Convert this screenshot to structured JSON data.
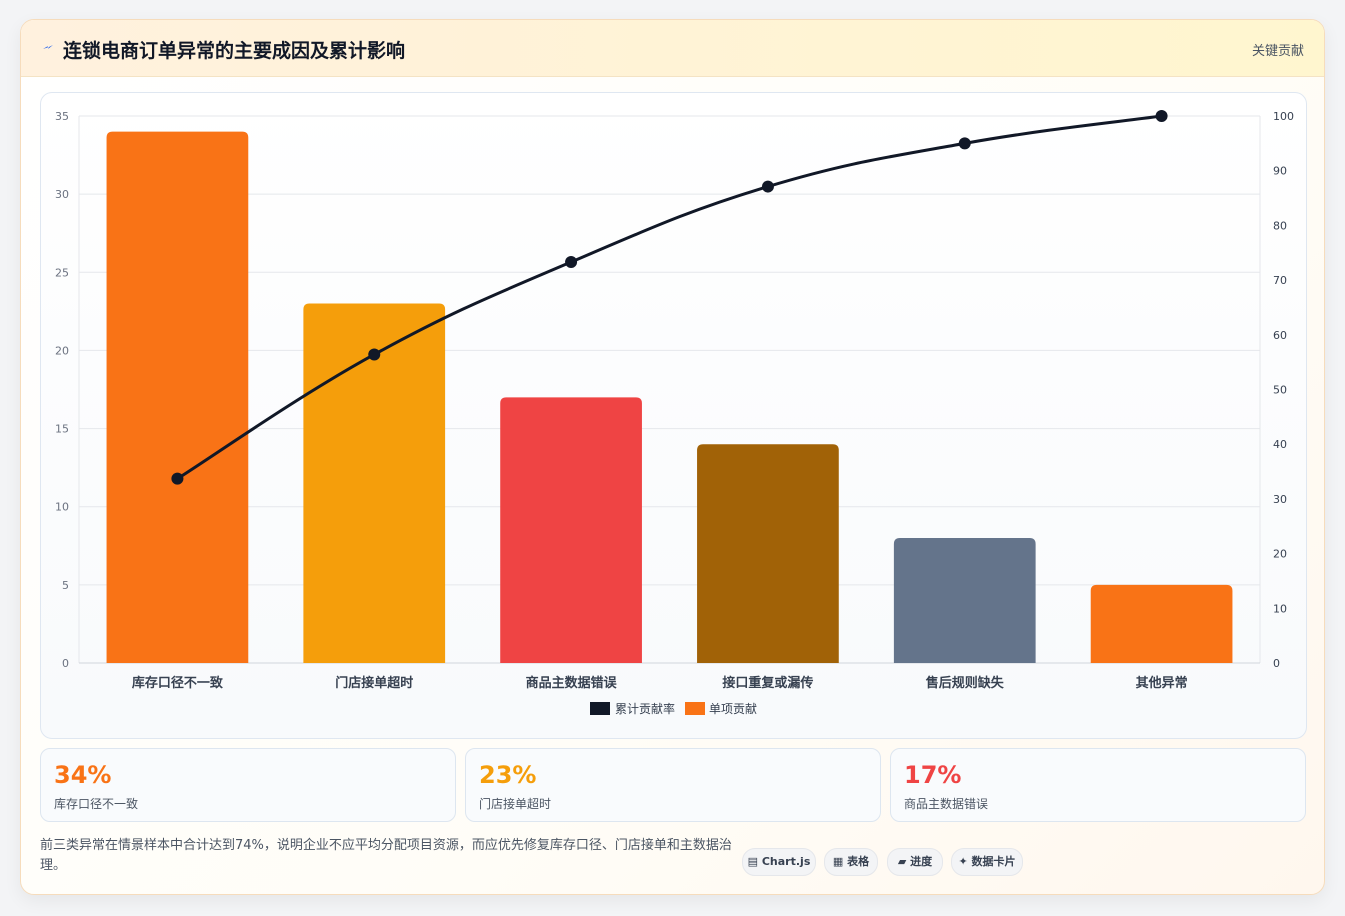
{
  "header": {
    "title": "连锁电商订单异常的主要成因及累计影响",
    "tag": "关键贡献",
    "icon": "lightning-icon"
  },
  "chart_data": {
    "type": "bar",
    "categories": [
      "库存口径不一致",
      "门店接单超时",
      "商品主数据错误",
      "接口重复或漏传",
      "售后规则缺失",
      "其他异常"
    ],
    "series": [
      {
        "name": "单项贡献",
        "type": "bar",
        "axis": "left",
        "values": [
          34,
          23,
          17,
          14,
          8,
          5
        ],
        "colors": [
          "#f97316",
          "#f59e0b",
          "#ef4444",
          "#a16207",
          "#64748b",
          "#f97316"
        ]
      },
      {
        "name": "累计贡献率",
        "type": "line",
        "axis": "right",
        "values": [
          33.7,
          56.4,
          73.3,
          87.1,
          95.0,
          100
        ],
        "color": "#111827"
      }
    ],
    "ylim": [
      0,
      35
    ],
    "y_ticks": [
      0,
      5,
      10,
      15,
      20,
      25,
      30,
      35
    ],
    "y2lim": [
      0,
      100
    ],
    "y2_ticks": [
      0,
      10,
      20,
      30,
      40,
      50,
      60,
      70,
      80,
      90,
      100
    ],
    "legend": {
      "position": "bottom",
      "items": [
        "累计贡献率",
        "单项贡献"
      ],
      "colors": [
        "#111827",
        "#f97316"
      ]
    },
    "grid": true
  },
  "stats": [
    {
      "value": "34%",
      "label": "库存口径不一致",
      "color": "#f97316"
    },
    {
      "value": "23%",
      "label": "门店接单超时",
      "color": "#f59e0b"
    },
    {
      "value": "17%",
      "label": "商品主数据错误",
      "color": "#ef4444"
    }
  ],
  "summary": "前三类异常在情景样本中合计达到74%，说明企业不应平均分配项目资源，而应优先修复库存口径、门店接单和主数据治理。",
  "chips": [
    {
      "icon": "chart-icon",
      "glyph": "▤",
      "label": "Chart.js"
    },
    {
      "icon": "table-icon",
      "glyph": "▦",
      "label": "表格"
    },
    {
      "icon": "progress-icon",
      "glyph": "▰",
      "label": "进度"
    },
    {
      "icon": "card-icon",
      "glyph": "✦",
      "label": "数据卡片"
    }
  ]
}
